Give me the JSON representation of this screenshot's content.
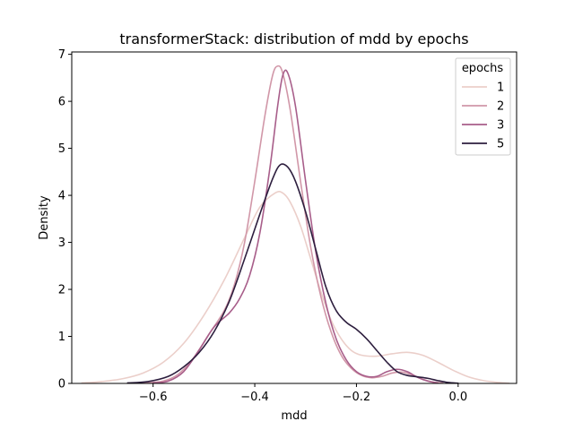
{
  "chart_data": {
    "type": "line",
    "title": "transformerStack: distribution of mdd by epochs",
    "xlabel": "mdd",
    "ylabel": "Density",
    "xlim": [
      -0.76,
      0.115
    ],
    "ylim": [
      0,
      7.05
    ],
    "xticks": [
      -0.6,
      -0.4,
      -0.2,
      0.0
    ],
    "xtick_labels": [
      "−0.6",
      "−0.4",
      "−0.2",
      "0.0"
    ],
    "yticks": [
      0,
      1,
      2,
      3,
      4,
      5,
      6,
      7
    ],
    "ytick_labels": [
      "0",
      "1",
      "2",
      "3",
      "4",
      "5",
      "6",
      "7"
    ],
    "grid": false,
    "legend": {
      "title": "epochs",
      "placement": "top-right"
    },
    "series": [
      {
        "name": "1",
        "color": "#ebcfca",
        "points": [
          [
            -0.74,
            0.01
          ],
          [
            -0.7,
            0.04
          ],
          [
            -0.66,
            0.1
          ],
          [
            -0.62,
            0.22
          ],
          [
            -0.58,
            0.45
          ],
          [
            -0.54,
            0.85
          ],
          [
            -0.5,
            1.45
          ],
          [
            -0.46,
            2.2
          ],
          [
            -0.42,
            3.1
          ],
          [
            -0.39,
            3.75
          ],
          [
            -0.36,
            4.05
          ],
          [
            -0.345,
            4.05
          ],
          [
            -0.33,
            3.85
          ],
          [
            -0.31,
            3.35
          ],
          [
            -0.29,
            2.65
          ],
          [
            -0.27,
            1.95
          ],
          [
            -0.25,
            1.35
          ],
          [
            -0.23,
            0.95
          ],
          [
            -0.21,
            0.7
          ],
          [
            -0.19,
            0.6
          ],
          [
            -0.16,
            0.58
          ],
          [
            -0.13,
            0.63
          ],
          [
            -0.1,
            0.66
          ],
          [
            -0.07,
            0.6
          ],
          [
            -0.04,
            0.45
          ],
          [
            -0.01,
            0.28
          ],
          [
            0.02,
            0.14
          ],
          [
            0.05,
            0.06
          ],
          [
            0.08,
            0.02
          ],
          [
            0.1,
            0.005
          ]
        ]
      },
      {
        "name": "2",
        "color": "#d197a8",
        "points": [
          [
            -0.62,
            0.01
          ],
          [
            -0.58,
            0.05
          ],
          [
            -0.55,
            0.2
          ],
          [
            -0.52,
            0.55
          ],
          [
            -0.49,
            1.05
          ],
          [
            -0.46,
            1.55
          ],
          [
            -0.44,
            2.1
          ],
          [
            -0.42,
            3.0
          ],
          [
            -0.4,
            4.3
          ],
          [
            -0.38,
            5.7
          ],
          [
            -0.365,
            6.55
          ],
          [
            -0.355,
            6.75
          ],
          [
            -0.345,
            6.6
          ],
          [
            -0.33,
            5.8
          ],
          [
            -0.31,
            4.3
          ],
          [
            -0.29,
            2.9
          ],
          [
            -0.27,
            1.85
          ],
          [
            -0.25,
            1.1
          ],
          [
            -0.23,
            0.6
          ],
          [
            -0.21,
            0.32
          ],
          [
            -0.19,
            0.17
          ],
          [
            -0.17,
            0.12
          ],
          [
            -0.15,
            0.15
          ],
          [
            -0.13,
            0.22
          ],
          [
            -0.11,
            0.24
          ],
          [
            -0.09,
            0.18
          ],
          [
            -0.07,
            0.09
          ],
          [
            -0.05,
            0.03
          ],
          [
            -0.03,
            0.01
          ]
        ]
      },
      {
        "name": "3",
        "color": "#a85e8a",
        "points": [
          [
            -0.6,
            0.01
          ],
          [
            -0.57,
            0.05
          ],
          [
            -0.54,
            0.25
          ],
          [
            -0.51,
            0.7
          ],
          [
            -0.48,
            1.2
          ],
          [
            -0.45,
            1.5
          ],
          [
            -0.43,
            1.8
          ],
          [
            -0.41,
            2.3
          ],
          [
            -0.39,
            3.2
          ],
          [
            -0.37,
            4.6
          ],
          [
            -0.355,
            5.9
          ],
          [
            -0.345,
            6.55
          ],
          [
            -0.335,
            6.6
          ],
          [
            -0.32,
            5.9
          ],
          [
            -0.3,
            4.3
          ],
          [
            -0.28,
            2.8
          ],
          [
            -0.26,
            1.7
          ],
          [
            -0.24,
            0.95
          ],
          [
            -0.22,
            0.5
          ],
          [
            -0.2,
            0.25
          ],
          [
            -0.18,
            0.15
          ],
          [
            -0.16,
            0.15
          ],
          [
            -0.14,
            0.25
          ],
          [
            -0.12,
            0.3
          ],
          [
            -0.1,
            0.25
          ],
          [
            -0.08,
            0.13
          ],
          [
            -0.06,
            0.05
          ],
          [
            -0.04,
            0.01
          ]
        ]
      },
      {
        "name": "5",
        "color": "#2d1e3e",
        "points": [
          [
            -0.65,
            0.01
          ],
          [
            -0.61,
            0.04
          ],
          [
            -0.57,
            0.15
          ],
          [
            -0.54,
            0.35
          ],
          [
            -0.51,
            0.65
          ],
          [
            -0.48,
            1.1
          ],
          [
            -0.45,
            1.75
          ],
          [
            -0.42,
            2.65
          ],
          [
            -0.39,
            3.6
          ],
          [
            -0.365,
            4.35
          ],
          [
            -0.35,
            4.65
          ],
          [
            -0.335,
            4.6
          ],
          [
            -0.32,
            4.3
          ],
          [
            -0.3,
            3.65
          ],
          [
            -0.28,
            2.85
          ],
          [
            -0.26,
            2.05
          ],
          [
            -0.24,
            1.55
          ],
          [
            -0.22,
            1.3
          ],
          [
            -0.2,
            1.15
          ],
          [
            -0.18,
            0.95
          ],
          [
            -0.16,
            0.7
          ],
          [
            -0.14,
            0.45
          ],
          [
            -0.12,
            0.25
          ],
          [
            -0.1,
            0.17
          ],
          [
            -0.08,
            0.14
          ],
          [
            -0.06,
            0.11
          ],
          [
            -0.04,
            0.06
          ],
          [
            -0.02,
            0.02
          ],
          [
            0.0,
            0.005
          ]
        ]
      }
    ]
  }
}
